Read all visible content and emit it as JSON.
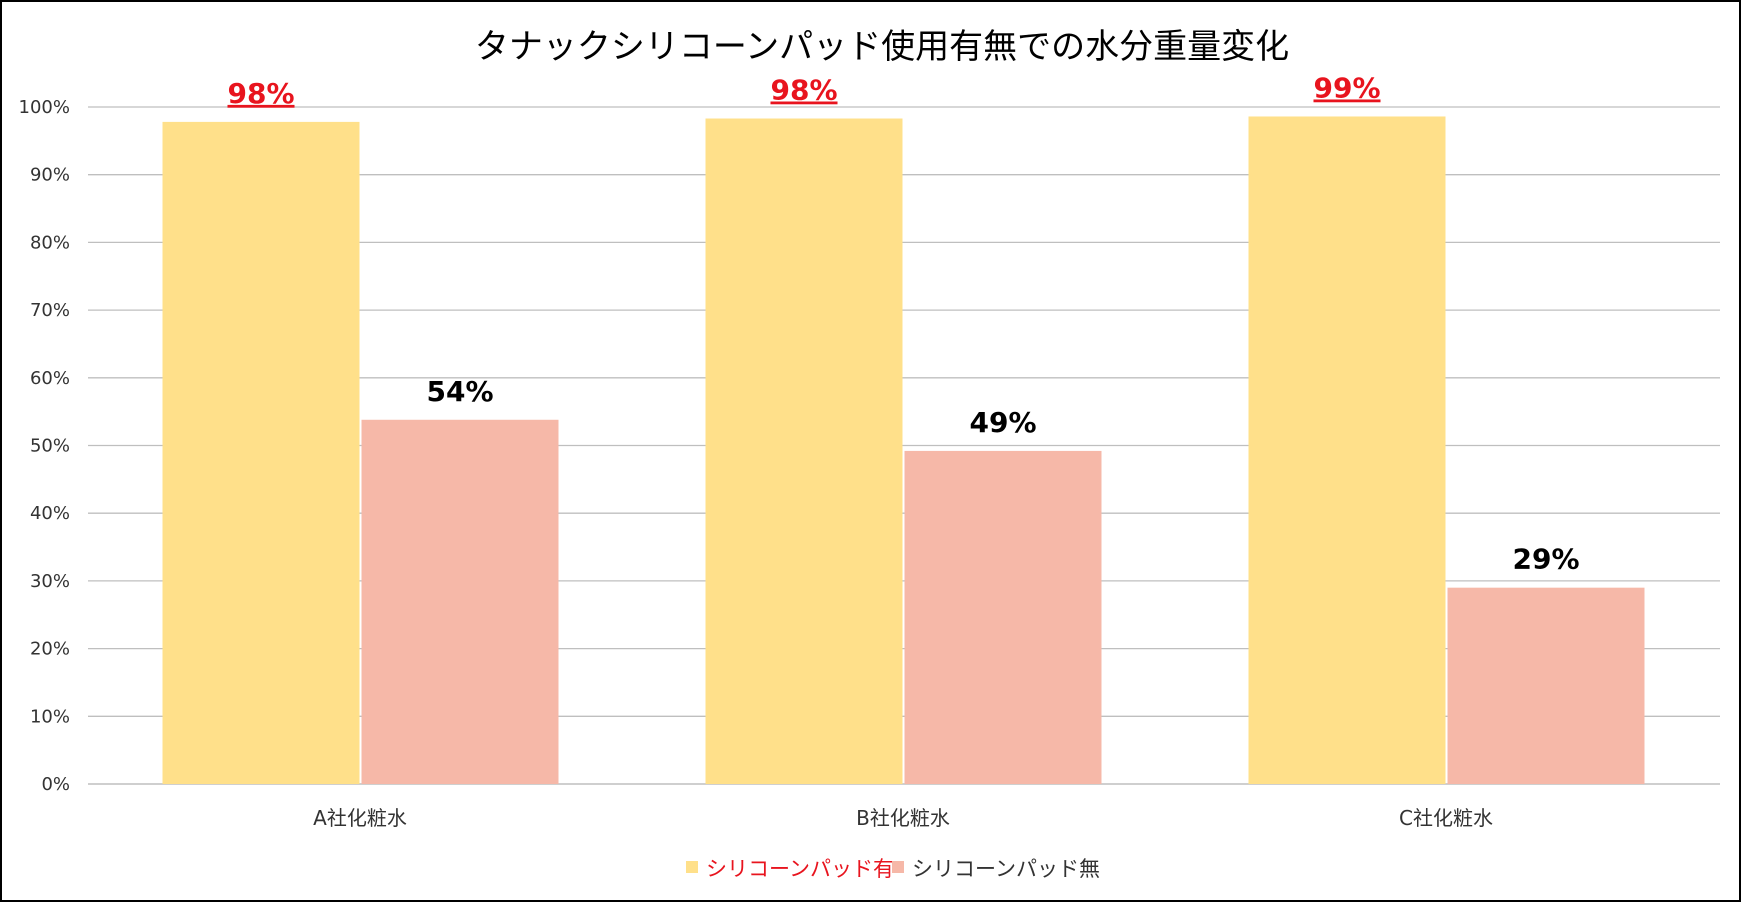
{
  "chart_data": {
    "type": "bar",
    "title": "タナックシリコーンパッド使用有無での水分重量変化",
    "categories": [
      "A社化粧水",
      "B社化粧水",
      "C社化粧水"
    ],
    "series": [
      {
        "name": "シリコーンパッド有",
        "values": [
          0.978,
          0.983,
          0.986
        ],
        "labels": [
          "98%",
          "98%",
          "99%"
        ],
        "color": "#FFE08A",
        "label_color": "#E8141E",
        "label_underline": true,
        "legend_text_color": "#E8141E"
      },
      {
        "name": "シリコーンパッド無",
        "values": [
          0.538,
          0.492,
          0.29
        ],
        "labels": [
          "54%",
          "49%",
          "29%"
        ],
        "color": "#F6B8A8",
        "label_color": "#000000",
        "label_underline": false,
        "legend_text_color": "#333333"
      }
    ],
    "ylim": [
      0,
      1
    ],
    "y_ticks": [
      0,
      0.1,
      0.2,
      0.3,
      0.4,
      0.5,
      0.6,
      0.7,
      0.8,
      0.9,
      1.0
    ],
    "y_tick_labels": [
      "0%",
      "10%",
      "20%",
      "30%",
      "40%",
      "50%",
      "60%",
      "70%",
      "80%",
      "90%",
      "100%"
    ],
    "grid": true,
    "grid_color": "#BFBFBF",
    "legend_position": "bottom-center"
  }
}
